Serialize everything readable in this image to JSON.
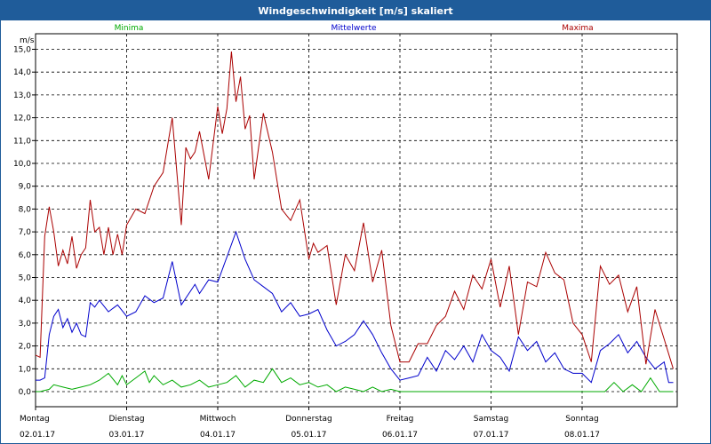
{
  "window": {
    "title": "Windgeschwindigkeit [m/s] skaliert"
  },
  "chart_data": {
    "type": "line",
    "title": "Windgeschwindigkeit [m/s] skaliert",
    "ylabel": "m/s",
    "xlabel": "",
    "ylim": [
      0,
      15.5
    ],
    "xlim": [
      0,
      7
    ],
    "y_ticks": [
      "0,0",
      "1,0",
      "2,0",
      "3,0",
      "4,0",
      "5,0",
      "6,0",
      "7,0",
      "8,0",
      "9,0",
      "10,0",
      "11,0",
      "12,0",
      "13,0",
      "14,0",
      "15,0"
    ],
    "x_ticks": [
      {
        "day": "Montag",
        "date": "02.01.17"
      },
      {
        "day": "Dienstag",
        "date": "03.01.17"
      },
      {
        "day": "Mittwoch",
        "date": "04.01.17"
      },
      {
        "day": "Donnerstag",
        "date": "05.01.17"
      },
      {
        "day": "Freitag",
        "date": "06.01.17"
      },
      {
        "day": "Samstag",
        "date": "07.01.17"
      },
      {
        "day": "Sonntag",
        "date": "08.01.17"
      }
    ],
    "grid": true,
    "legend": "top",
    "series": [
      {
        "name": "Minima",
        "color": "#00aa00",
        "x": [
          0,
          0.05,
          0.15,
          0.2,
          0.3,
          0.4,
          0.5,
          0.6,
          0.7,
          0.8,
          0.9,
          0.95,
          1.0,
          1.1,
          1.2,
          1.25,
          1.3,
          1.4,
          1.5,
          1.6,
          1.7,
          1.8,
          1.9,
          2.0,
          2.1,
          2.2,
          2.3,
          2.4,
          2.5,
          2.6,
          2.7,
          2.8,
          2.9,
          3.0,
          3.1,
          3.2,
          3.3,
          3.4,
          3.5,
          3.6,
          3.7,
          3.8,
          3.9,
          4.0,
          4.1,
          4.2,
          4.5,
          5.0,
          5.5,
          6.0,
          6.25,
          6.35,
          6.45,
          6.55,
          6.65,
          6.75,
          6.85,
          6.95,
          7.0
        ],
        "values": [
          0.0,
          0.0,
          0.1,
          0.3,
          0.2,
          0.1,
          0.2,
          0.3,
          0.5,
          0.8,
          0.3,
          0.7,
          0.3,
          0.6,
          0.9,
          0.4,
          0.7,
          0.3,
          0.5,
          0.2,
          0.3,
          0.5,
          0.2,
          0.3,
          0.4,
          0.7,
          0.2,
          0.5,
          0.4,
          1.0,
          0.4,
          0.6,
          0.3,
          0.4,
          0.2,
          0.3,
          0.0,
          0.2,
          0.1,
          0.0,
          0.2,
          0.0,
          0.1,
          0.0,
          0.0,
          0.0,
          0.0,
          0.0,
          0.0,
          0.0,
          0.0,
          0.4,
          0.0,
          0.3,
          0.0,
          0.6,
          0.0,
          0.0,
          0.0
        ]
      },
      {
        "name": "Mittelwerte",
        "color": "#0000cc",
        "x": [
          0,
          0.05,
          0.1,
          0.15,
          0.2,
          0.25,
          0.3,
          0.35,
          0.4,
          0.45,
          0.5,
          0.55,
          0.6,
          0.65,
          0.7,
          0.8,
          0.9,
          1.0,
          1.1,
          1.2,
          1.3,
          1.4,
          1.5,
          1.6,
          1.7,
          1.75,
          1.8,
          1.9,
          2.0,
          2.1,
          2.2,
          2.3,
          2.4,
          2.5,
          2.6,
          2.7,
          2.8,
          2.9,
          3.0,
          3.1,
          3.2,
          3.3,
          3.4,
          3.5,
          3.6,
          3.7,
          3.8,
          3.9,
          4.0,
          4.1,
          4.2,
          4.3,
          4.4,
          4.5,
          4.6,
          4.7,
          4.8,
          4.9,
          5.0,
          5.1,
          5.2,
          5.3,
          5.4,
          5.5,
          5.6,
          5.7,
          5.8,
          5.9,
          6.0,
          6.1,
          6.2,
          6.3,
          6.4,
          6.5,
          6.6,
          6.7,
          6.8,
          6.9,
          6.95,
          7.0
        ],
        "values": [
          0.5,
          0.5,
          0.6,
          2.5,
          3.3,
          3.6,
          2.8,
          3.2,
          2.6,
          3.0,
          2.5,
          2.4,
          3.9,
          3.7,
          4.0,
          3.5,
          3.8,
          3.3,
          3.5,
          4.2,
          3.9,
          4.1,
          5.7,
          3.8,
          4.4,
          4.7,
          4.3,
          4.9,
          4.8,
          5.9,
          7.0,
          5.8,
          4.9,
          4.6,
          4.3,
          3.5,
          3.9,
          3.3,
          3.4,
          3.6,
          2.7,
          2.0,
          2.2,
          2.5,
          3.1,
          2.5,
          1.7,
          1.0,
          0.5,
          0.6,
          0.7,
          1.5,
          0.9,
          1.8,
          1.4,
          2.0,
          1.3,
          2.5,
          1.8,
          1.5,
          0.9,
          2.4,
          1.8,
          2.2,
          1.3,
          1.7,
          1.0,
          0.8,
          0.8,
          0.4,
          1.8,
          2.1,
          2.5,
          1.7,
          2.2,
          1.5,
          1.0,
          1.3,
          0.4,
          0.4
        ]
      },
      {
        "name": "Maxima",
        "color": "#aa0000",
        "x": [
          0,
          0.05,
          0.1,
          0.15,
          0.2,
          0.25,
          0.3,
          0.35,
          0.4,
          0.45,
          0.5,
          0.55,
          0.6,
          0.65,
          0.7,
          0.75,
          0.8,
          0.85,
          0.9,
          0.95,
          1.0,
          1.1,
          1.2,
          1.3,
          1.4,
          1.5,
          1.6,
          1.65,
          1.7,
          1.75,
          1.8,
          1.9,
          2.0,
          2.05,
          2.1,
          2.15,
          2.2,
          2.25,
          2.3,
          2.35,
          2.4,
          2.5,
          2.6,
          2.7,
          2.8,
          2.9,
          3.0,
          3.05,
          3.1,
          3.2,
          3.3,
          3.4,
          3.5,
          3.6,
          3.7,
          3.8,
          3.9,
          4.0,
          4.1,
          4.2,
          4.3,
          4.4,
          4.5,
          4.6,
          4.7,
          4.8,
          4.9,
          5.0,
          5.1,
          5.2,
          5.3,
          5.4,
          5.5,
          5.6,
          5.7,
          5.8,
          5.9,
          6.0,
          6.1,
          6.2,
          6.3,
          6.4,
          6.5,
          6.6,
          6.7,
          6.8,
          6.9,
          7.0
        ],
        "values": [
          1.6,
          1.5,
          6.8,
          8.1,
          7.0,
          5.5,
          6.2,
          5.6,
          6.8,
          5.4,
          6.0,
          6.3,
          8.4,
          7.0,
          7.2,
          6.0,
          7.2,
          6.0,
          6.9,
          6.0,
          7.3,
          8.0,
          7.8,
          9.0,
          9.6,
          12.0,
          7.3,
          10.7,
          10.2,
          10.5,
          11.4,
          9.3,
          12.5,
          11.3,
          12.4,
          14.9,
          12.7,
          13.8,
          11.5,
          12.1,
          9.3,
          12.2,
          10.5,
          8.0,
          7.5,
          8.4,
          5.8,
          6.5,
          6.1,
          6.4,
          3.8,
          6.0,
          5.3,
          7.4,
          4.8,
          6.2,
          2.9,
          1.3,
          1.3,
          2.1,
          2.1,
          2.9,
          3.3,
          4.4,
          3.6,
          5.1,
          4.5,
          5.8,
          3.7,
          5.5,
          2.5,
          4.8,
          4.6,
          6.1,
          5.2,
          4.9,
          3.0,
          2.5,
          1.3,
          5.5,
          4.7,
          5.1,
          3.5,
          4.6,
          1.2,
          3.6,
          2.3,
          1.0
        ]
      }
    ]
  }
}
